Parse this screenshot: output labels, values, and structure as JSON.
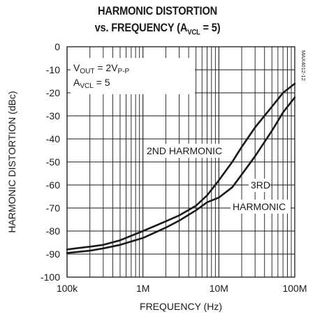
{
  "chart_data": {
    "type": "line",
    "title_line1": "HARMONIC DISTORTION",
    "title_line2_pre": "vs. FREQUENCY (A",
    "title_line2_sub": "VCL",
    "title_line2_post": " = 5)",
    "xlabel": "FREQUENCY (Hz)",
    "ylabel": "HARMONIC DISTORTION (dBc)",
    "x_scale": "log",
    "xlim": [
      100000,
      100000000
    ],
    "ylim": [
      -100,
      0
    ],
    "x_ticks": [
      {
        "value": 100000,
        "label": "100k"
      },
      {
        "value": 1000000,
        "label": "1M"
      },
      {
        "value": 10000000,
        "label": "10M"
      },
      {
        "value": 100000000,
        "label": "100M"
      }
    ],
    "y_ticks": [
      {
        "value": 0,
        "label": "0"
      },
      {
        "value": -10,
        "label": "-10"
      },
      {
        "value": -20,
        "label": "-20"
      },
      {
        "value": -30,
        "label": "-30"
      },
      {
        "value": -40,
        "label": "-40"
      },
      {
        "value": -50,
        "label": "-50"
      },
      {
        "value": -60,
        "label": "-60"
      },
      {
        "value": -70,
        "label": "-70"
      },
      {
        "value": -80,
        "label": "-80"
      },
      {
        "value": -90,
        "label": "-90"
      },
      {
        "value": -100,
        "label": "-100"
      }
    ],
    "grid": true,
    "conditions": [
      {
        "pre": "V",
        "sub": "OUT",
        "post": " = 2V",
        "sub2": "P-P"
      },
      {
        "pre": "A",
        "sub": "VCL",
        "post": " = 5",
        "sub2": ""
      }
    ],
    "watermark": "MAX4012-12",
    "series": [
      {
        "name": "2ND HARMONIC",
        "points": [
          [
            100000,
            -88.0
          ],
          [
            130000,
            -87.5
          ],
          [
            200000,
            -86.8
          ],
          [
            300000,
            -86.0
          ],
          [
            500000,
            -84.0
          ],
          [
            1000000,
            -80.0
          ],
          [
            2000000,
            -75.8
          ],
          [
            3000000,
            -73.2
          ],
          [
            5000000,
            -69.0
          ],
          [
            7000000,
            -64.5
          ],
          [
            10000000,
            -58.0
          ],
          [
            15000000,
            -50.0
          ],
          [
            20000000,
            -43.5
          ],
          [
            30000000,
            -35.0
          ],
          [
            50000000,
            -26.0
          ],
          [
            70000000,
            -20.0
          ],
          [
            100000000,
            -16.0
          ]
        ]
      },
      {
        "name": "3RD HARMONIC",
        "points": [
          [
            100000,
            -89.5
          ],
          [
            200000,
            -88.5
          ],
          [
            300000,
            -87.5
          ],
          [
            500000,
            -86.0
          ],
          [
            1000000,
            -83.0
          ],
          [
            2000000,
            -78.5
          ],
          [
            3000000,
            -75.5
          ],
          [
            5000000,
            -71.0
          ],
          [
            7000000,
            -67.5
          ],
          [
            10000000,
            -65.5
          ],
          [
            15000000,
            -61.0
          ],
          [
            20000000,
            -55.5
          ],
          [
            30000000,
            -47.5
          ],
          [
            50000000,
            -36.5
          ],
          [
            70000000,
            -28.5
          ],
          [
            100000000,
            -22.0
          ]
        ]
      }
    ],
    "annotations": [
      "2ND HARMONIC",
      "3RD",
      "HARMONIC"
    ]
  }
}
